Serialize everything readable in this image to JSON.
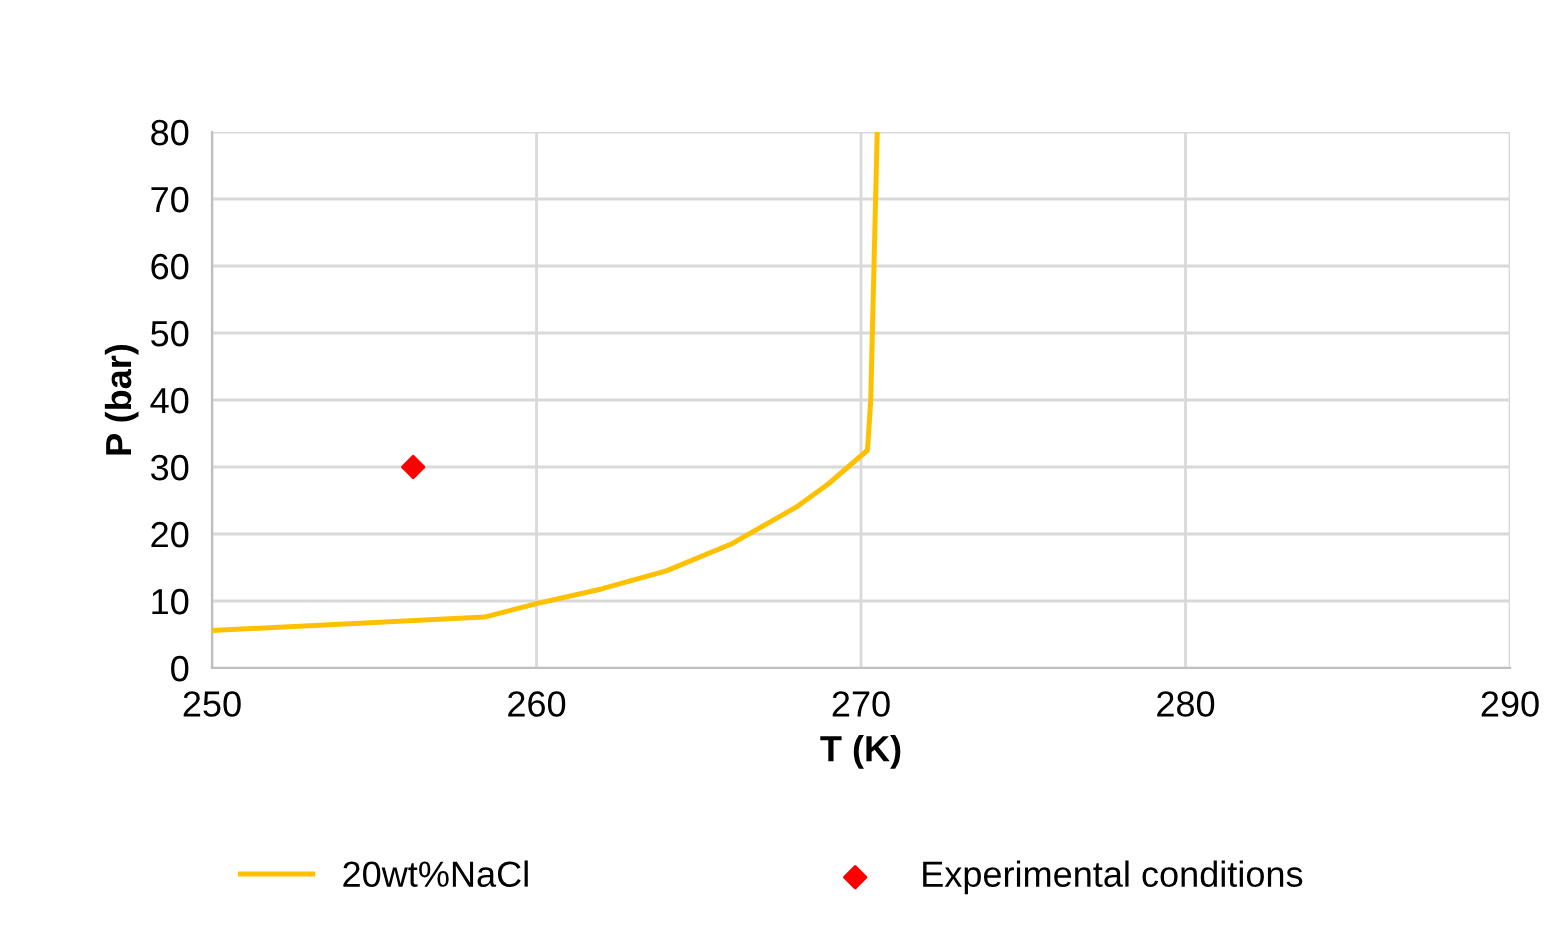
{
  "chart_data": {
    "type": "line",
    "xlabel": "T (K)",
    "ylabel": "P (bar)",
    "xlim": [
      250,
      290
    ],
    "xticks": [
      250,
      260,
      270,
      280,
      290
    ],
    "ylim": [
      0,
      80
    ],
    "yticks": [
      0,
      10,
      20,
      30,
      40,
      50,
      60,
      70,
      80
    ],
    "grid": true,
    "legend": "bottom",
    "series": [
      {
        "name": "20wt%NaCl",
        "color": "#ffc000",
        "marker": "none",
        "x": [
          250,
          258.4,
          260,
          262,
          264,
          266,
          268,
          269,
          270.2,
          270.3,
          270.5
        ],
        "values": [
          5.6,
          7.6,
          9.6,
          11.8,
          14.5,
          18.5,
          24,
          27.5,
          32.5,
          40,
          80
        ]
      },
      {
        "name": "Experimental conditions",
        "type": "scatter",
        "color": "#ff0000",
        "marker": "diamond",
        "x": [
          256.2
        ],
        "values": [
          30
        ]
      }
    ]
  }
}
